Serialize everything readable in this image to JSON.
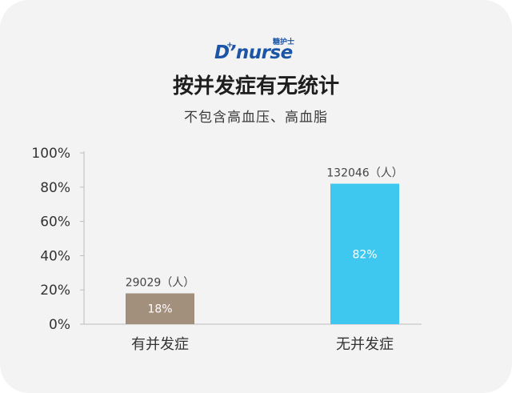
{
  "logo": {
    "main": "D’nurse",
    "sub": "糖护士",
    "cross": "+"
  },
  "title": "按并发症有无统计",
  "subtitle": "不包含高血压、高血脂",
  "colors": {
    "bar1": "#a3907c",
    "bar2": "#3ec8f0",
    "axis": "#bdbdbd",
    "text": "#333333"
  },
  "chart_data": {
    "type": "bar",
    "categories": [
      "有并发症",
      "无并发症"
    ],
    "values": [
      18,
      82
    ],
    "value_labels": [
      "18%",
      "82%"
    ],
    "count_labels": [
      "29029（人）",
      "132046（人）"
    ],
    "yticks": [
      "0%",
      "20%",
      "40%",
      "60%",
      "80%",
      "100%"
    ],
    "ylim": [
      0,
      100
    ],
    "grid": false
  }
}
